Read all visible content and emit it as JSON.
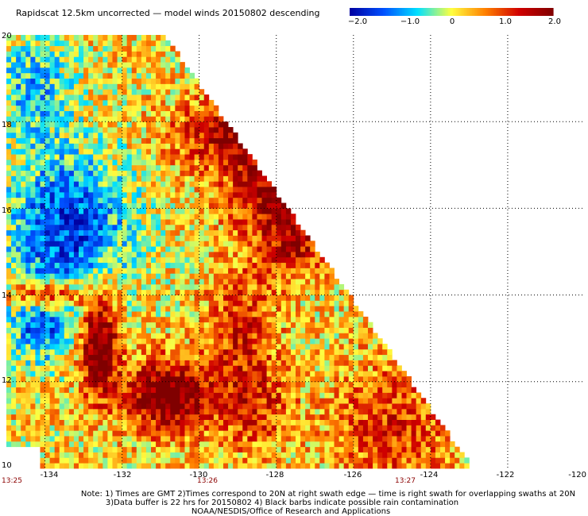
{
  "chart_data": {
    "type": "heatmap",
    "title": "Rapidscat 12.5km uncorrected — model winds 20150802 descending",
    "colorbar": {
      "ticks": [
        "−2.0",
        "−1.0",
        "0",
        "1.0",
        "2.0"
      ],
      "range": [
        -2.0,
        2.0
      ],
      "colors": [
        "#0000a0",
        "#0050ff",
        "#00e0ff",
        "#ffff40",
        "#ff8000",
        "#d00000",
        "#800000"
      ]
    },
    "x_ticks": [
      "-134",
      "-132",
      "-130",
      "-128",
      "-126",
      "-124",
      "-122",
      "-120"
    ],
    "y_ticks": [
      "10",
      "12",
      "14",
      "16",
      "18",
      "20"
    ],
    "xlim": [
      -135,
      -120
    ],
    "ylim": [
      10,
      20
    ],
    "times": [
      "13:25",
      "13:26",
      "13:27"
    ],
    "swath_right_edge": [
      {
        "lat": 20.0,
        "lon": -130.9
      },
      {
        "lat": 10.0,
        "lon": -122.9
      }
    ],
    "grid": true
  },
  "notes": {
    "line1": "Note: 1) Times are GMT 2)Times correspond to 20N at right swath edge — time is right swath for overlapping swaths at 20N",
    "line2": "3)Data buffer is 22 hrs for 20150802 4) Black barbs indicate possible rain contamination",
    "line3": "NOAA/NESDIS/Office of Research and Applications"
  }
}
